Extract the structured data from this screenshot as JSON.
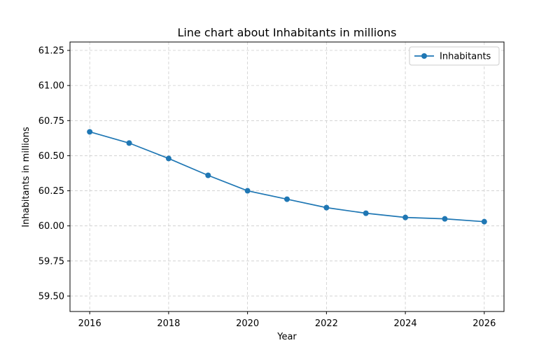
{
  "chart_data": {
    "type": "line",
    "title": "Line chart about Inhabitants in millions",
    "xlabel": "Year",
    "ylabel": "Inhabitants in millions",
    "x": [
      2016,
      2017,
      2018,
      2019,
      2020,
      2021,
      2022,
      2023,
      2024,
      2025,
      2026
    ],
    "x_ticks": [
      "2016",
      "2018",
      "2020",
      "2022",
      "2024",
      "2026"
    ],
    "y_ticks": [
      "59.50",
      "59.75",
      "60.00",
      "60.25",
      "60.50",
      "60.75",
      "61.00",
      "61.25"
    ],
    "xlim": [
      2015.5,
      2026.5
    ],
    "ylim": [
      59.39,
      61.31
    ],
    "grid": true,
    "legend_position": "top-right",
    "series": [
      {
        "name": "Inhabitants",
        "color": "#1f77b4",
        "marker": "circle",
        "values": [
          60.67,
          60.59,
          60.48,
          60.36,
          60.25,
          60.19,
          60.13,
          60.09,
          60.06,
          60.05,
          60.03
        ]
      }
    ]
  }
}
